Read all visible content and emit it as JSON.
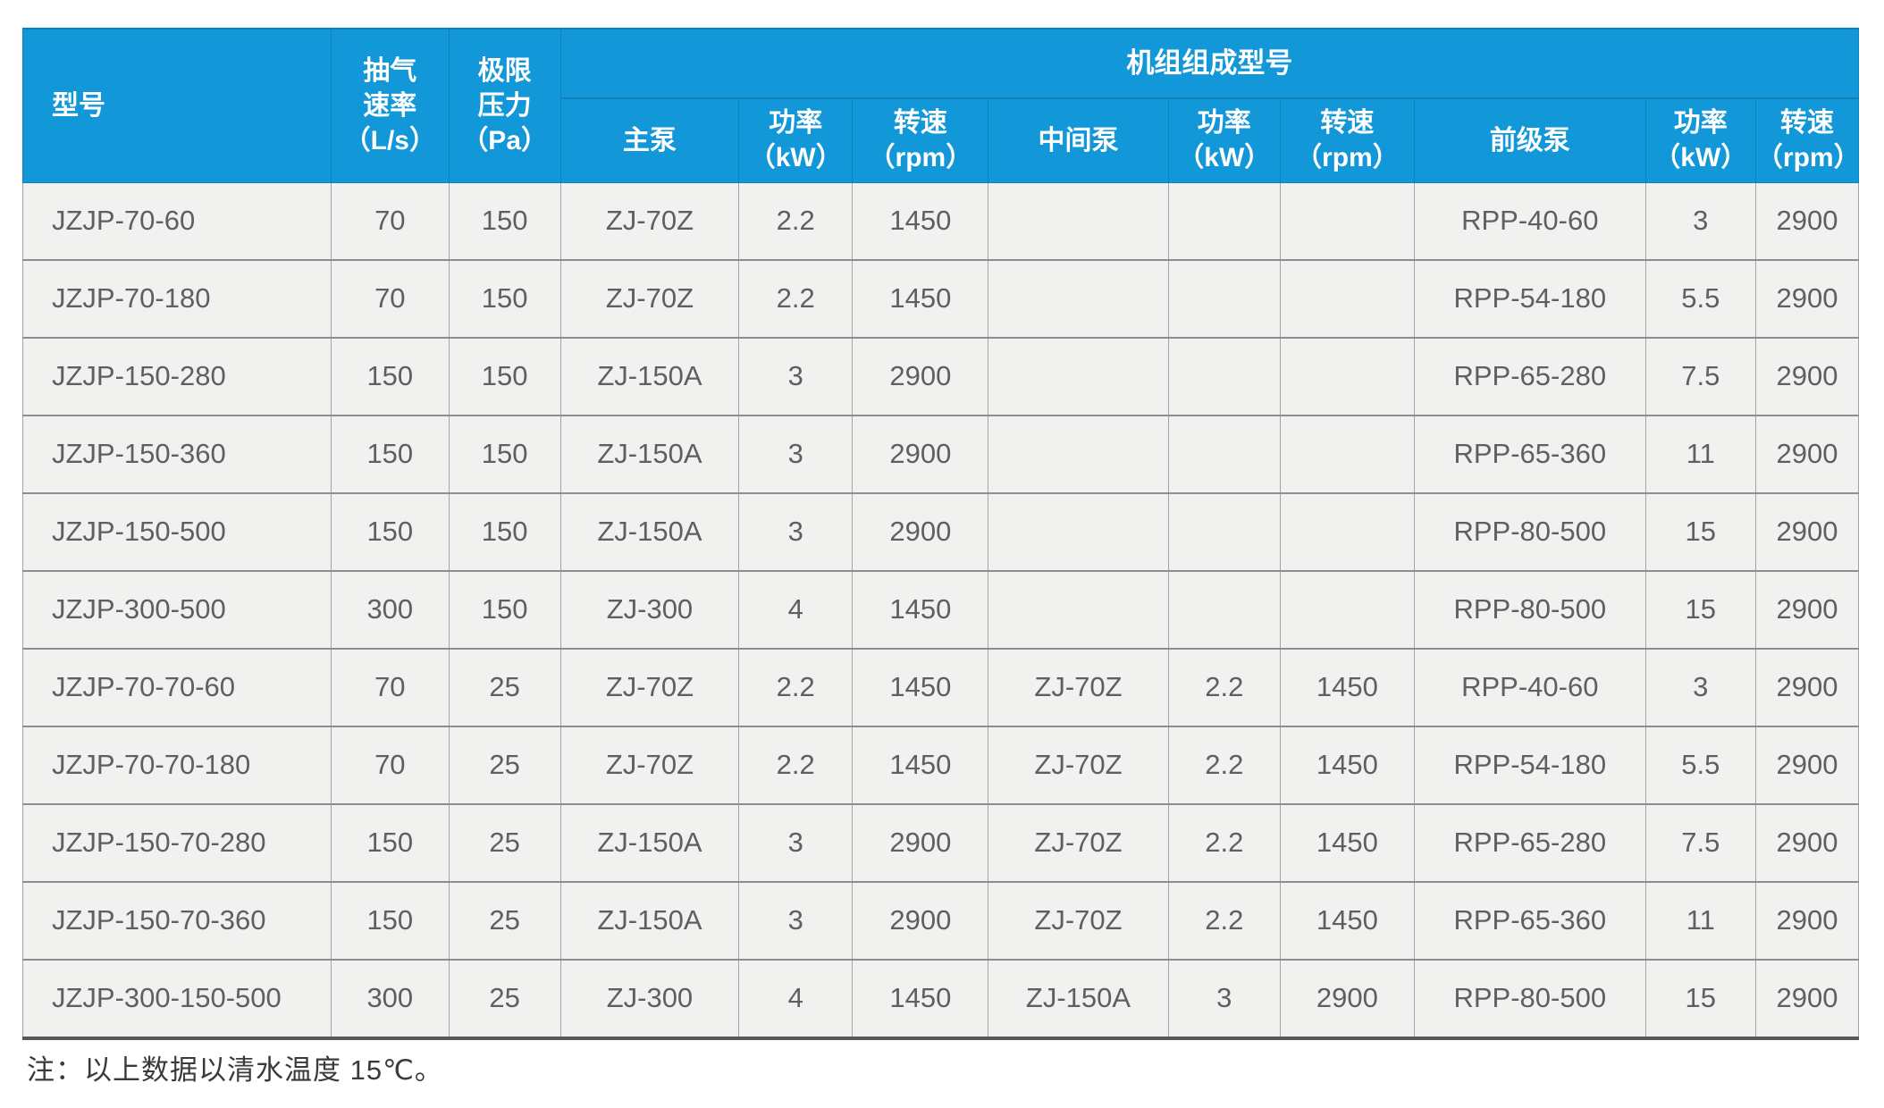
{
  "page": {
    "note": "注：以上数据以清水温度 15℃。"
  },
  "colors": {
    "header_bg": "#1297d9",
    "header_divider": "#0e81ba",
    "header_text": "#ffffff",
    "cell_bg": "#f1f1f0",
    "cell_text": "#5f5f5f",
    "row_divider": "#8e8e8e",
    "col_divider": "#a3a3a3",
    "table_bottom_border": "#585858",
    "note_text": "#3a3a3a"
  },
  "table": {
    "group_header": "机组组成型号",
    "fixed_columns": [
      {
        "title": "型号",
        "unit": ""
      },
      {
        "title": "抽气\n速率",
        "unit": "（L/s）"
      },
      {
        "title": "极限\n压力",
        "unit": "（Pa）"
      }
    ],
    "group_columns": [
      {
        "title": "主泵",
        "unit": ""
      },
      {
        "title": "功率",
        "unit": "（kW）"
      },
      {
        "title": "转速",
        "unit": "（rpm）"
      },
      {
        "title": "中间泵",
        "unit": ""
      },
      {
        "title": "功率",
        "unit": "（kW）"
      },
      {
        "title": "转速",
        "unit": "（rpm）"
      },
      {
        "title": "前级泵",
        "unit": ""
      },
      {
        "title": "功率",
        "unit": "（kW）"
      },
      {
        "title": "转速",
        "unit": "（rpm）"
      }
    ],
    "rows": [
      [
        "JZJP-70-60",
        "70",
        "150",
        "ZJ-70Z",
        "2.2",
        "1450",
        "",
        "",
        "",
        "RPP-40-60",
        "3",
        "2900"
      ],
      [
        "JZJP-70-180",
        "70",
        "150",
        "ZJ-70Z",
        "2.2",
        "1450",
        "",
        "",
        "",
        "RPP-54-180",
        "5.5",
        "2900"
      ],
      [
        "JZJP-150-280",
        "150",
        "150",
        "ZJ-150A",
        "3",
        "2900",
        "",
        "",
        "",
        "RPP-65-280",
        "7.5",
        "2900"
      ],
      [
        "JZJP-150-360",
        "150",
        "150",
        "ZJ-150A",
        "3",
        "2900",
        "",
        "",
        "",
        "RPP-65-360",
        "11",
        "2900"
      ],
      [
        "JZJP-150-500",
        "150",
        "150",
        "ZJ-150A",
        "3",
        "2900",
        "",
        "",
        "",
        "RPP-80-500",
        "15",
        "2900"
      ],
      [
        "JZJP-300-500",
        "300",
        "150",
        "ZJ-300",
        "4",
        "1450",
        "",
        "",
        "",
        "RPP-80-500",
        "15",
        "2900"
      ],
      [
        "JZJP-70-70-60",
        "70",
        "25",
        "ZJ-70Z",
        "2.2",
        "1450",
        "ZJ-70Z",
        "2.2",
        "1450",
        "RPP-40-60",
        "3",
        "2900"
      ],
      [
        "JZJP-70-70-180",
        "70",
        "25",
        "ZJ-70Z",
        "2.2",
        "1450",
        "ZJ-70Z",
        "2.2",
        "1450",
        "RPP-54-180",
        "5.5",
        "2900"
      ],
      [
        "JZJP-150-70-280",
        "150",
        "25",
        "ZJ-150A",
        "3",
        "2900",
        "ZJ-70Z",
        "2.2",
        "1450",
        "RPP-65-280",
        "7.5",
        "2900"
      ],
      [
        "JZJP-150-70-360",
        "150",
        "25",
        "ZJ-150A",
        "3",
        "2900",
        "ZJ-70Z",
        "2.2",
        "1450",
        "RPP-65-360",
        "11",
        "2900"
      ],
      [
        "JZJP-300-150-500",
        "300",
        "25",
        "ZJ-300",
        "4",
        "1450",
        "ZJ-150A",
        "3",
        "2900",
        "RPP-80-500",
        "15",
        "2900"
      ]
    ]
  }
}
